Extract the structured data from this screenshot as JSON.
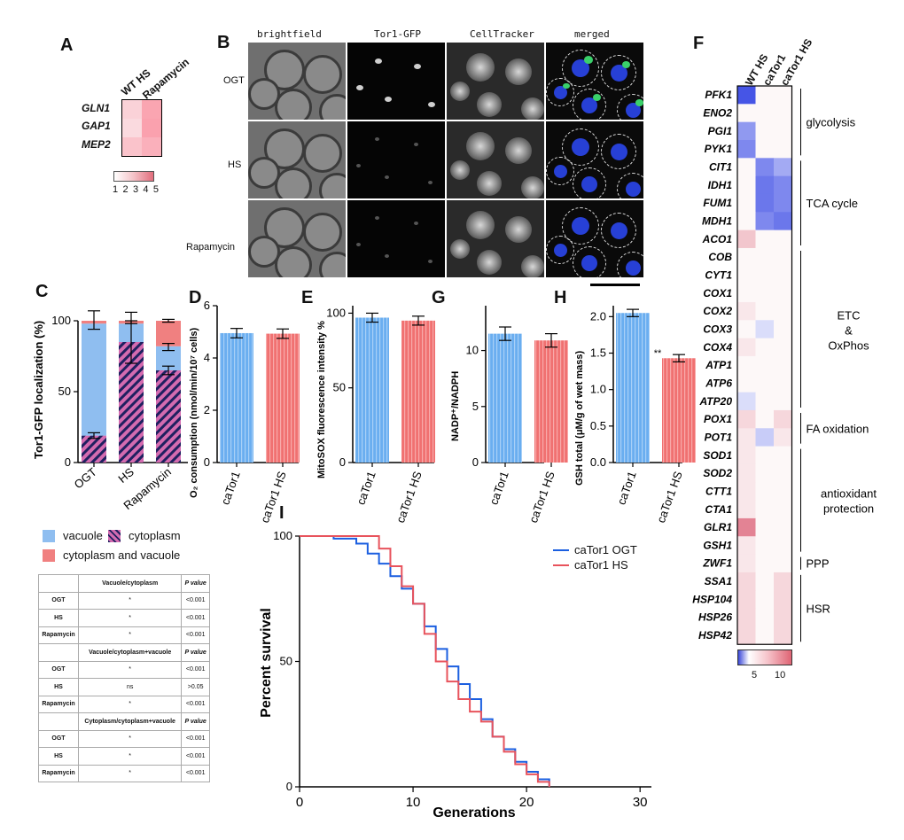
{
  "colors": {
    "blue": "#5ba1e8",
    "blue_line": "#1b5fe0",
    "red": "#ef6b6b",
    "red_line": "#e8535c",
    "stripe": "#d46bb0",
    "navy": "#1f2060",
    "heat_blue": "#4a58e6",
    "heat_red": "#dc6478"
  },
  "panel_labels": {
    "a": "A",
    "b": "B",
    "c": "C",
    "d": "D",
    "e": "E",
    "g": "G",
    "h": "H",
    "i": "I",
    "f": "F"
  },
  "panel_a": {
    "columns": [
      "WT HS",
      "Rapamycin"
    ],
    "genes": [
      "GLN1",
      "GAP1",
      "MEP2"
    ],
    "values": [
      [
        2.2,
        3.4
      ],
      [
        2.0,
        3.5
      ],
      [
        2.6,
        3.1
      ]
    ],
    "scale": {
      "min": 1,
      "max": 5,
      "labels": [
        "1",
        "2",
        "3",
        "4",
        "5"
      ]
    }
  },
  "panel_b": {
    "columns": [
      "brightfield",
      "Tor1-GFP",
      "CellTracker",
      "merged"
    ],
    "rows": [
      "OGT",
      "HS",
      "Rapamycin"
    ]
  },
  "panel_c": {
    "ylabel": "Tor1-GFP localization (%)",
    "yticks": [
      "0",
      "50",
      "100"
    ],
    "categories": [
      "OGT",
      "HS",
      "Rapamycin"
    ],
    "legend": [
      "vacuole",
      "cytoplasm",
      "cytoplasm and vacuole"
    ],
    "chart_data": {
      "type": "bar",
      "stacked": true,
      "categories": [
        "OGT",
        "HS",
        "Rapamycin"
      ],
      "series": [
        {
          "name": "cytoplasm",
          "values": [
            19,
            85,
            65
          ]
        },
        {
          "name": "vacuole",
          "values": [
            79,
            13,
            17
          ]
        },
        {
          "name": "cytoplasm and vacuole",
          "values": [
            2,
            2,
            18
          ]
        }
      ],
      "ylim": [
        0,
        100
      ]
    }
  },
  "panel_d": {
    "ylabel": "O₂ consumption (nmol/min/10⁷ cells)",
    "yticks": [
      "0",
      "2",
      "4",
      "6"
    ],
    "categories": [
      "caTor1",
      "caTor1 HS"
    ],
    "chart_data": {
      "type": "bar",
      "categories": [
        "caTor1",
        "caTor1 HS"
      ],
      "values": [
        4.95,
        4.93
      ],
      "errors": [
        0.18,
        0.18
      ],
      "ylim": [
        0,
        6
      ]
    }
  },
  "panel_e": {
    "ylabel": "MitoSOX fluorescence intensity %",
    "yticks": [
      "0",
      "50",
      "100"
    ],
    "categories": [
      "caTor1",
      "caTor1 HS"
    ],
    "chart_data": {
      "type": "bar",
      "categories": [
        "caTor1",
        "caTor1 HS"
      ],
      "values": [
        97,
        95
      ],
      "errors": [
        3,
        3
      ],
      "ylim": [
        0,
        105
      ]
    }
  },
  "panel_g": {
    "ylabel": "NADP⁺/NADPH",
    "yticks": [
      "0",
      "5",
      "10"
    ],
    "categories": [
      "caTor1",
      "caTor1 HS"
    ],
    "chart_data": {
      "type": "bar",
      "categories": [
        "caTor1",
        "caTor1 HS"
      ],
      "values": [
        11.5,
        10.9
      ],
      "errors": [
        0.6,
        0.6
      ],
      "ylim": [
        0,
        14
      ]
    }
  },
  "panel_h": {
    "ylabel": "GSH total (μM/g of wet mass)",
    "yticks": [
      "0.0",
      "0.5",
      "1.0",
      "1.5",
      "2.0"
    ],
    "categories": [
      "caTor1",
      "caTor1 HS"
    ],
    "significance": "**",
    "chart_data": {
      "type": "bar",
      "categories": [
        "caTor1",
        "caTor1 HS"
      ],
      "values": [
        2.05,
        1.43
      ],
      "errors": [
        0.05,
        0.05
      ],
      "ylim": [
        0,
        2.15
      ]
    }
  },
  "panel_i": {
    "xlabel": "Generations",
    "ylabel": "Percent survival",
    "xticks": [
      "0",
      "10",
      "20",
      "30"
    ],
    "yticks": [
      "0",
      "50",
      "100"
    ],
    "legend": [
      "caTor1 OGT",
      "caTor1 HS"
    ],
    "chart_data": {
      "type": "line",
      "step": true,
      "xlim": [
        0,
        31
      ],
      "ylim": [
        0,
        100
      ],
      "series": [
        {
          "name": "caTor1 OGT",
          "x": [
            0,
            3,
            5,
            6,
            7,
            8,
            9,
            10,
            11,
            12,
            13,
            14,
            15,
            16,
            17,
            18,
            19,
            20,
            21,
            22
          ],
          "y": [
            100,
            99,
            97,
            93,
            89,
            84,
            79,
            73,
            64,
            55,
            48,
            41,
            35,
            27,
            20,
            15,
            10,
            6,
            3,
            0
          ]
        },
        {
          "name": "caTor1 HS",
          "x": [
            0,
            5,
            7,
            8,
            9,
            10,
            11,
            12,
            13,
            14,
            15,
            16,
            17,
            18,
            19,
            20,
            21,
            22
          ],
          "y": [
            100,
            100,
            95,
            88,
            80,
            73,
            61,
            50,
            42,
            35,
            30,
            26,
            20,
            14,
            9,
            5,
            2,
            0
          ]
        }
      ]
    }
  },
  "table": {
    "headers": [
      "Vacuole/cytoplasm",
      "Vacuole/cytoplasm+vacuole",
      "Cytoplasm/cytoplasm+vacuole"
    ],
    "pvalue_header": "P value",
    "rows": [
      [
        [
          "OGT",
          "*",
          "<0.001"
        ],
        [
          "HS",
          "*",
          "<0.001"
        ],
        [
          "Rapamycin",
          "*",
          "<0.001"
        ]
      ],
      [
        [
          "OGT",
          "*",
          "<0.001"
        ],
        [
          "HS",
          "ns",
          ">0.05"
        ],
        [
          "Rapamycin",
          "*",
          "<0.001"
        ]
      ],
      [
        [
          "OGT",
          "*",
          "<0.001"
        ],
        [
          "HS",
          "*",
          "<0.001"
        ],
        [
          "Rapamycin",
          "*",
          "<0.001"
        ]
      ]
    ]
  },
  "panel_f": {
    "columns": [
      "WT HS",
      "caTor1",
      "caTor1 HS"
    ],
    "genes": [
      "PFK1",
      "ENO2",
      "PGI1",
      "PYK1",
      "CIT1",
      "IDH1",
      "FUM1",
      "MDH1",
      "ACO1",
      "COB",
      "CYT1",
      "COX1",
      "COX2",
      "COX3",
      "COX4",
      "ATP1",
      "ATP6",
      "ATP20",
      "POX1",
      "POT1",
      "SOD1",
      "SOD2",
      "CTT1",
      "CTA1",
      "GLR1",
      "GSH1",
      "ZWF1",
      "SSA1",
      "HSP104",
      "HSP26",
      "HSP42"
    ],
    "values": [
      [
        -10,
        1,
        1
      ],
      [
        1,
        1,
        1
      ],
      [
        -6,
        1,
        1
      ],
      [
        -7,
        1,
        1
      ],
      [
        1,
        -7,
        -5
      ],
      [
        1,
        -8,
        -7
      ],
      [
        1,
        -8,
        -7
      ],
      [
        1,
        -7,
        -8
      ],
      [
        4,
        1,
        1
      ],
      [
        1,
        1,
        1
      ],
      [
        1,
        1,
        1
      ],
      [
        1,
        1,
        1
      ],
      [
        2,
        1,
        1
      ],
      [
        1,
        -2,
        1
      ],
      [
        2,
        1,
        1
      ],
      [
        1,
        1,
        1
      ],
      [
        1,
        1,
        1
      ],
      [
        -2,
        1,
        1
      ],
      [
        3,
        1,
        3
      ],
      [
        2,
        -3,
        2
      ],
      [
        2,
        1,
        1
      ],
      [
        2,
        1,
        1
      ],
      [
        2,
        1,
        1
      ],
      [
        2,
        1,
        1
      ],
      [
        8,
        1,
        1
      ],
      [
        2,
        1,
        1
      ],
      [
        2,
        1,
        1
      ],
      [
        3,
        1,
        3
      ],
      [
        3,
        1,
        3
      ],
      [
        3,
        1,
        3
      ],
      [
        3,
        1,
        3
      ]
    ],
    "groups": [
      {
        "label": "glycolysis",
        "rows": [
          0,
          3
        ]
      },
      {
        "label": "TCA cycle",
        "rows": [
          4,
          8
        ]
      },
      {
        "label": "ETC\n&\nOxPhos",
        "rows": [
          9,
          17
        ]
      },
      {
        "label": "FA oxidation",
        "rows": [
          18,
          19
        ]
      },
      {
        "label": "antioxidant\nprotection",
        "rows": [
          20,
          25
        ]
      },
      {
        "label": "PPP",
        "rows": [
          26,
          26
        ]
      },
      {
        "label": "HSR",
        "rows": [
          27,
          30
        ]
      }
    ],
    "scale": {
      "labels": [
        "5",
        "10"
      ]
    }
  }
}
